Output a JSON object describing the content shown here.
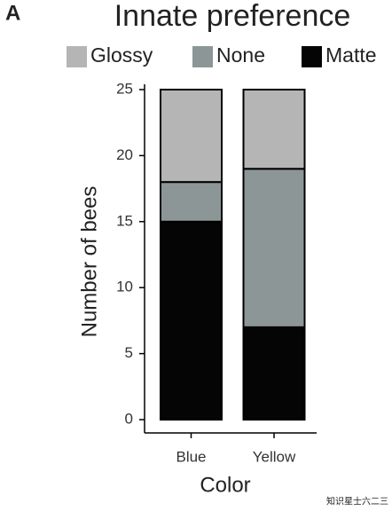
{
  "panel_label": "A",
  "watermark": "知识星士六二三",
  "chart_data": {
    "type": "bar",
    "stacked": true,
    "title": "Innate preference",
    "x_label": "Color",
    "y_label": "Number of bees",
    "categories": [
      "Blue",
      "Yellow"
    ],
    "series": [
      {
        "name": "Glossy",
        "color": "#b5b5b5",
        "values": [
          7,
          6
        ]
      },
      {
        "name": "None",
        "color": "#8c9696",
        "values": [
          3,
          12
        ]
      },
      {
        "name": "Matte",
        "color": "#050505",
        "values": [
          15,
          7
        ]
      }
    ],
    "ylim": [
      0,
      25
    ],
    "yticks": [
      0,
      5,
      10,
      15,
      20,
      25
    ],
    "grid": false
  }
}
